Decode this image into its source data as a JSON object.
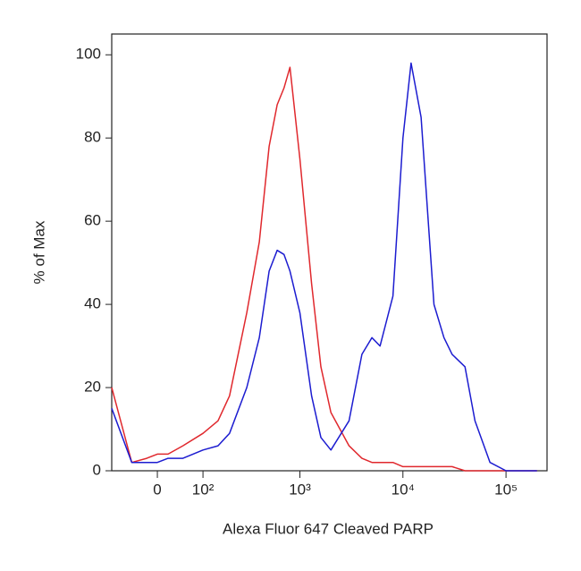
{
  "chart_data": {
    "type": "line",
    "x_label": "Alexa Fluor  647 Cleaved PARP",
    "y_label": "% of Max",
    "xscale": "biexponential",
    "x": [
      -100,
      -50,
      -20,
      0,
      20,
      50,
      100,
      150,
      200,
      300,
      400,
      500,
      600,
      700,
      800,
      1000,
      1300,
      1600,
      2000,
      3000,
      4000,
      5000,
      6000,
      8000,
      10000,
      12000,
      15000,
      20000,
      25000,
      30000,
      40000,
      50000,
      70000,
      100000,
      200000
    ],
    "series": [
      {
        "color": "#e0282d",
        "values": [
          20,
          2,
          3,
          4,
          4,
          6,
          9,
          12,
          18,
          38,
          55,
          78,
          88,
          92,
          97,
          75,
          45,
          25,
          14,
          6,
          3,
          2,
          2,
          2,
          1,
          1,
          1,
          1,
          1,
          1,
          0,
          0,
          0,
          0,
          0
        ]
      },
      {
        "color": "#1c1cd0",
        "values": [
          15,
          2,
          2,
          2,
          3,
          3,
          5,
          6,
          9,
          20,
          32,
          48,
          53,
          52,
          48,
          38,
          18,
          8,
          5,
          12,
          28,
          32,
          30,
          42,
          80,
          98,
          85,
          40,
          32,
          28,
          25,
          12,
          2,
          0,
          0
        ]
      }
    ],
    "xlim": [
      -100,
      250000
    ],
    "ylim": [
      0,
      105
    ],
    "xticks": [
      0,
      {
        "value": 100,
        "label": "10²"
      },
      {
        "value": 1000,
        "label": "10³"
      },
      {
        "value": 10000,
        "label": "10⁴"
      },
      {
        "value": 100000,
        "label": "10⁵"
      }
    ],
    "yticks": [
      0,
      20,
      40,
      60,
      80,
      100
    ]
  }
}
